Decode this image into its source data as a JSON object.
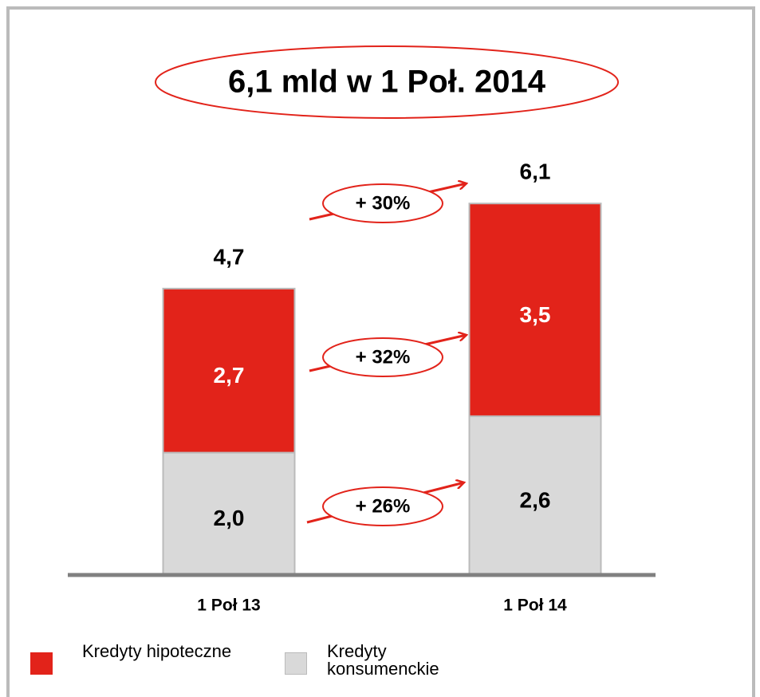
{
  "chart_data": {
    "type": "stacked-bar",
    "title": "6,1 mld w 1 Poł. 2014",
    "categories": [
      "1 Poł 13",
      "1 Poł 14"
    ],
    "series": [
      {
        "name": "Kredyty konsumenckie",
        "color": "#d9d9d9",
        "values": [
          2.0,
          2.6
        ],
        "value_labels": [
          "2,0",
          "2,6"
        ]
      },
      {
        "name": "Kredyty hipoteczne",
        "color": "#e2231a",
        "values": [
          2.7,
          3.5
        ],
        "value_labels": [
          "2,7",
          "3,5"
        ]
      }
    ],
    "totals": [
      4.7,
      6.1
    ],
    "total_labels": [
      "4,7",
      "6,1"
    ],
    "annotations": [
      "+ 30%",
      "+ 32%",
      "+ 26%"
    ]
  }
}
